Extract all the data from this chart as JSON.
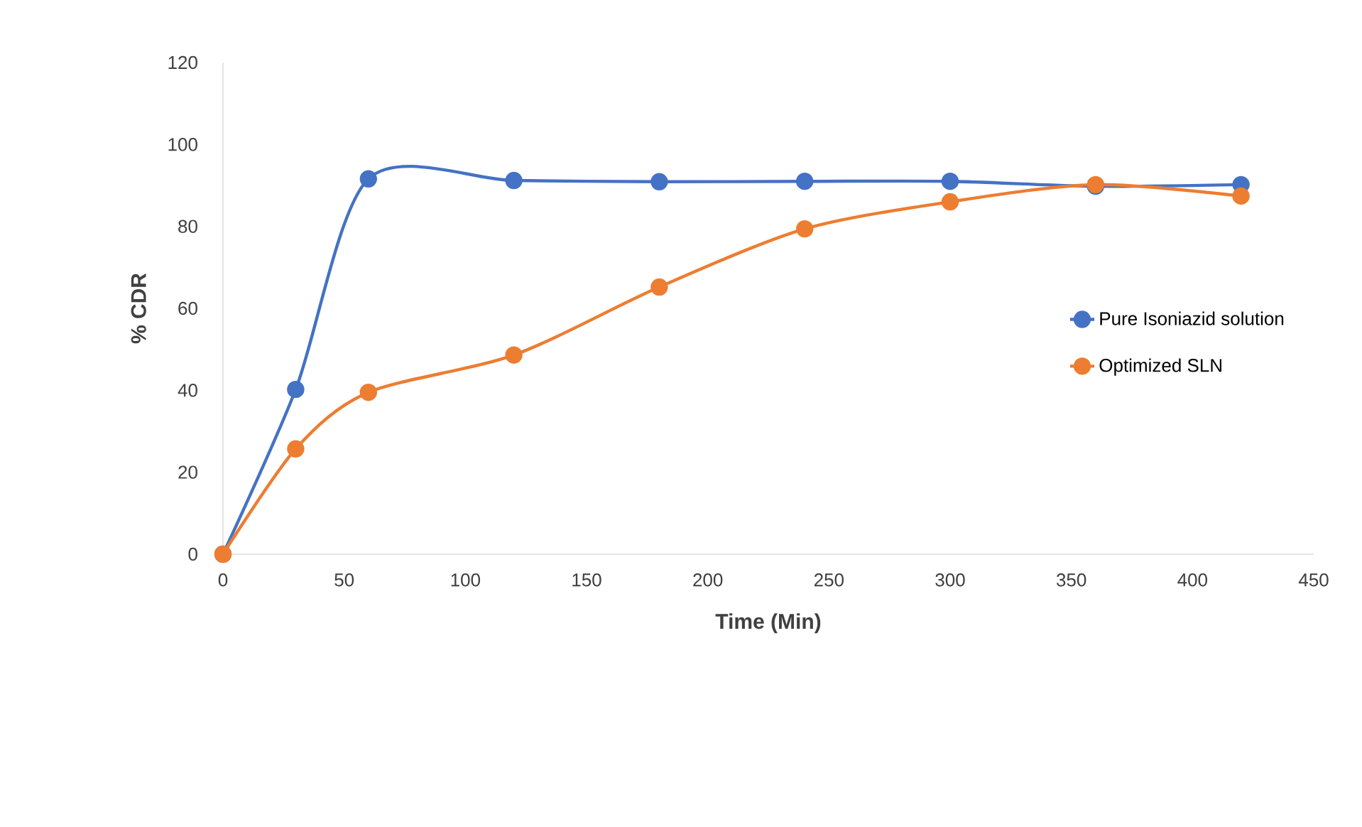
{
  "chart_data": {
    "type": "line",
    "xlabel": "Time (Min)",
    "ylabel": "% CDR",
    "x": [
      0,
      30,
      60,
      120,
      180,
      240,
      300,
      360,
      420
    ],
    "series": [
      {
        "name": "Pure Isoniazid solution",
        "color": "#4472c4",
        "values": [
          0,
          40.2,
          91.6,
          91.2,
          90.9,
          91,
          91,
          89.8,
          90.2
        ]
      },
      {
        "name": "Optimized SLN",
        "color": "#ed7d31",
        "values": [
          0,
          25.7,
          39.5,
          48.6,
          65.2,
          79.4,
          86,
          90.2,
          87.4
        ]
      }
    ],
    "xlim": [
      0,
      450
    ],
    "xticks": [
      0,
      50,
      100,
      150,
      200,
      250,
      300,
      350,
      400,
      450
    ],
    "ylim": [
      0,
      120
    ],
    "yticks": [
      0,
      20,
      40,
      60,
      80,
      100,
      120
    ],
    "grid": false,
    "legend": "right",
    "marker": "circle",
    "line_style": "solid"
  }
}
